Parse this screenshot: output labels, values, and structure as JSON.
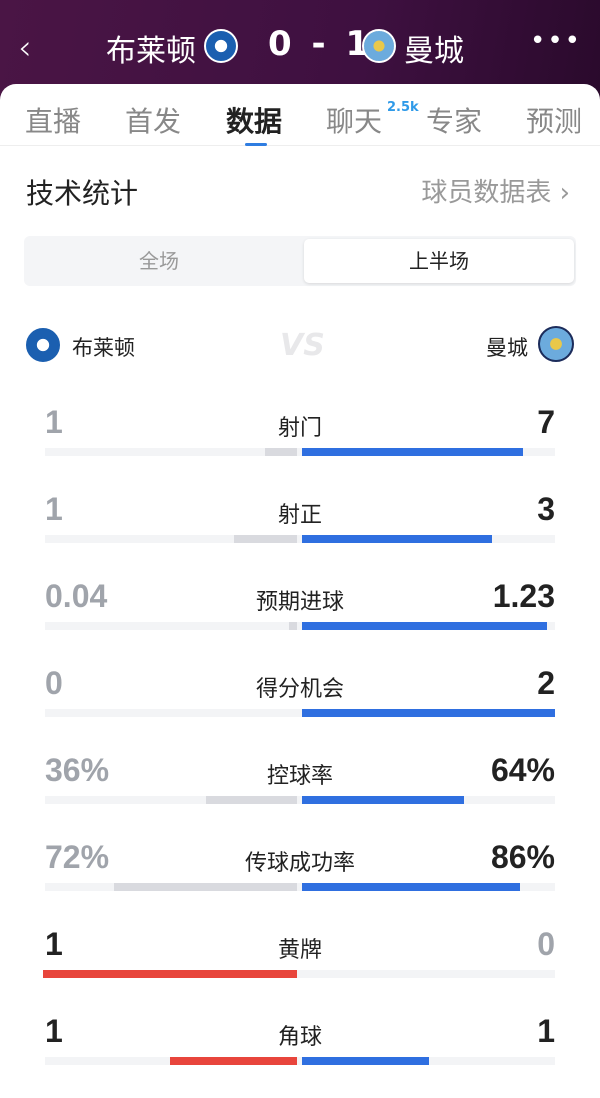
{
  "header": {
    "back_icon": "chevron-left-icon",
    "home": "布莱顿",
    "score": "0 - 1",
    "away": "曼城",
    "more_icon": "more-dots-icon"
  },
  "tabs": [
    {
      "label": "直播"
    },
    {
      "label": "首发"
    },
    {
      "label": "数据",
      "active": true
    },
    {
      "label": "聊天",
      "badge": "2.5k"
    },
    {
      "label": "专家"
    },
    {
      "label": "预测"
    }
  ],
  "section": {
    "title": "技术统计",
    "link": "球员数据表 ›"
  },
  "segment": {
    "options": [
      "全场",
      "上半场"
    ],
    "selected": "上半场"
  },
  "teams": {
    "home": "布莱顿",
    "away": "曼城",
    "vs": "VS"
  },
  "colors": {
    "blue": "#2f6fe0",
    "red": "#e8453c",
    "grey": "#d9dadf",
    "track": "#f3f4f6",
    "muted": "#a0a4ab",
    "dark": "#222222"
  },
  "stats": [
    {
      "label": "射门",
      "home": "1",
      "away": "7",
      "home_fill": 0.125,
      "away_fill": 0.875,
      "winner": "away"
    },
    {
      "label": "射正",
      "home": "1",
      "away": "3",
      "home_fill": 0.25,
      "away_fill": 0.75,
      "winner": "away"
    },
    {
      "label": "预期进球",
      "home": "0.04",
      "away": "1.23",
      "home_fill": 0.03,
      "away_fill": 0.97,
      "winner": "away"
    },
    {
      "label": "得分机会",
      "home": "0",
      "away": "2",
      "home_fill": 0,
      "away_fill": 1,
      "winner": "away"
    },
    {
      "label": "控球率",
      "home": "36%",
      "away": "64%",
      "home_fill": 0.36,
      "away_fill": 0.64,
      "winner": "away"
    },
    {
      "label": "传球成功率",
      "home": "72%",
      "away": "86%",
      "home_fill": 0.72,
      "away_fill": 0.86,
      "winner": "away"
    },
    {
      "label": "黄牌",
      "home": "1",
      "away": "0",
      "home_fill": 1,
      "away_fill": 0,
      "winner": "home"
    },
    {
      "label": "角球",
      "home": "1",
      "away": "1",
      "home_fill": 0.5,
      "away_fill": 0.5,
      "winner": "both"
    }
  ]
}
